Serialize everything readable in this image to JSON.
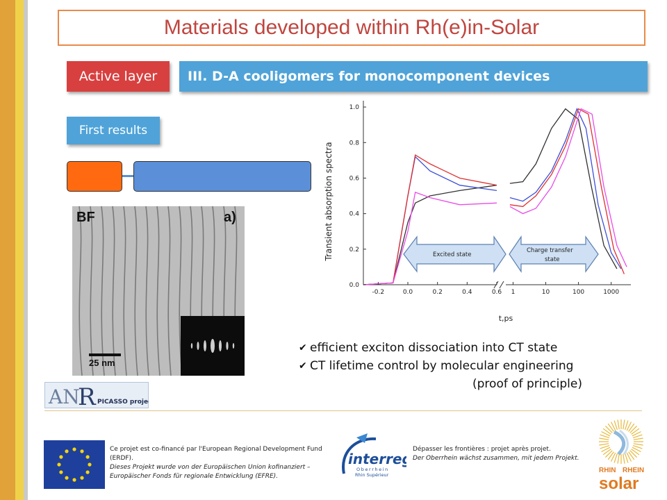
{
  "title": "Materials developed within Rh(e)in-Solar",
  "tags": {
    "active_layer": "Active layer",
    "section": "III. D-A cooligomers for monocomponent devices",
    "first_results": "First results"
  },
  "tem": {
    "panel_label_left": "BF",
    "panel_label_right": "a)",
    "scale_bar": "25 nm"
  },
  "chart_data": {
    "type": "line",
    "ylabel": "Transient absorption spectra",
    "xlabel": "t,ps",
    "x_ticks_linear": [
      "-0.2",
      "0.0",
      "0.2",
      "0.4",
      "0.6"
    ],
    "x_ticks_log": [
      "1",
      "10",
      "100",
      "1000"
    ],
    "y_ticks": [
      "0.0",
      "0.2",
      "0.4",
      "0.6",
      "0.8",
      "1.0"
    ],
    "ylim": [
      0,
      1.02
    ],
    "series": [
      {
        "color": "#303030",
        "linear": [
          [
            -0.3,
            0.0
          ],
          [
            -0.1,
            0.01
          ],
          [
            0.0,
            0.35
          ],
          [
            0.05,
            0.46
          ],
          [
            0.15,
            0.5
          ],
          [
            0.35,
            0.53
          ],
          [
            0.6,
            0.56
          ]
        ],
        "log": [
          [
            0.8,
            0.57
          ],
          [
            2,
            0.58
          ],
          [
            5,
            0.68
          ],
          [
            15,
            0.88
          ],
          [
            40,
            0.99
          ],
          [
            100,
            0.93
          ],
          [
            250,
            0.55
          ],
          [
            600,
            0.22
          ],
          [
            1500,
            0.09
          ]
        ]
      },
      {
        "color": "#3a4fd8",
        "linear": [
          [
            -0.3,
            0.0
          ],
          [
            -0.1,
            0.01
          ],
          [
            0.0,
            0.5
          ],
          [
            0.05,
            0.72
          ],
          [
            0.15,
            0.64
          ],
          [
            0.35,
            0.56
          ],
          [
            0.6,
            0.53
          ]
        ],
        "log": [
          [
            0.8,
            0.49
          ],
          [
            2,
            0.47
          ],
          [
            5,
            0.52
          ],
          [
            15,
            0.64
          ],
          [
            40,
            0.81
          ],
          [
            90,
            0.99
          ],
          [
            170,
            0.88
          ],
          [
            400,
            0.45
          ],
          [
            1000,
            0.18
          ],
          [
            2000,
            0.09
          ]
        ]
      },
      {
        "color": "#e03030",
        "linear": [
          [
            -0.3,
            0.0
          ],
          [
            -0.1,
            0.01
          ],
          [
            0.0,
            0.5
          ],
          [
            0.05,
            0.73
          ],
          [
            0.15,
            0.68
          ],
          [
            0.35,
            0.6
          ],
          [
            0.6,
            0.56
          ]
        ],
        "log": [
          [
            0.8,
            0.45
          ],
          [
            2,
            0.44
          ],
          [
            5,
            0.5
          ],
          [
            15,
            0.62
          ],
          [
            40,
            0.78
          ],
          [
            100,
            0.99
          ],
          [
            200,
            0.96
          ],
          [
            500,
            0.55
          ],
          [
            1200,
            0.2
          ],
          [
            2500,
            0.06
          ]
        ]
      },
      {
        "color": "#e84ce8",
        "linear": [
          [
            -0.3,
            0.0
          ],
          [
            -0.1,
            0.01
          ],
          [
            0.0,
            0.3
          ],
          [
            0.05,
            0.52
          ],
          [
            0.15,
            0.49
          ],
          [
            0.35,
            0.45
          ],
          [
            0.6,
            0.46
          ]
        ],
        "log": [
          [
            0.8,
            0.44
          ],
          [
            2,
            0.4
          ],
          [
            5,
            0.43
          ],
          [
            15,
            0.55
          ],
          [
            40,
            0.72
          ],
          [
            120,
            0.99
          ],
          [
            260,
            0.96
          ],
          [
            600,
            0.55
          ],
          [
            1500,
            0.22
          ],
          [
            3000,
            0.1
          ]
        ]
      }
    ],
    "arrow_labels": {
      "left": "Excited state",
      "right_line1": "Charge transfer",
      "right_line2": "state"
    }
  },
  "bullets": [
    "efficient exciton dissociation into CT state",
    "CT lifetime control by molecular engineering"
  ],
  "bullet_note": "(proof of principle)",
  "anr": {
    "label": "PICASSO project"
  },
  "footer": {
    "eu_text_line1": "Ce projet est co-financé par l'European Regional Development Fund (ERDF).",
    "eu_text_line2": "Dieses Projekt wurde von der Europäischen Union kofinanziert – Europäischer Fonds für regionale Entwicklung (EFRE).",
    "interreg_text_line1": "Dépasser les frontières : projet après projet.",
    "interreg_text_line2": "Der Oberrhein wächst zusammen, mit jedem Projekt.",
    "interreg_brand": "interreg",
    "interreg_sub1": "Oberrhein",
    "interreg_sub2": "Rhin Supérieur",
    "solar_rhin": "RHIN",
    "solar_rhein": "RHEIN",
    "solar_word": "solar"
  }
}
